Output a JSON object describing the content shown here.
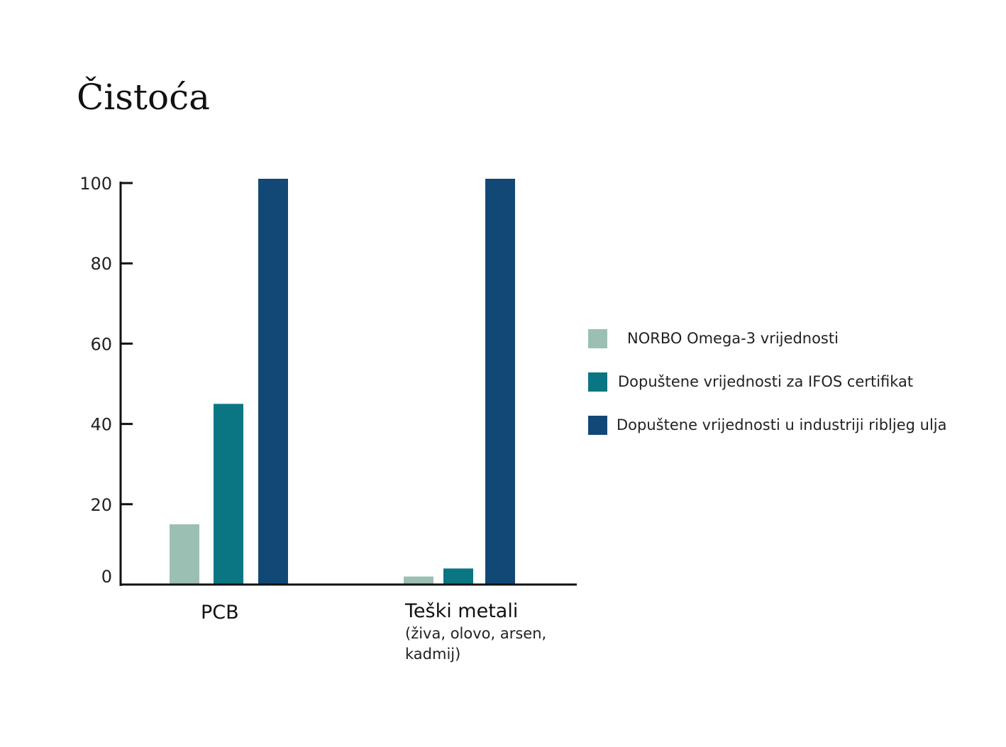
{
  "title": "Čistoća",
  "colors": {
    "norbo": "#9bc0b3",
    "ifos": "#0b7683",
    "industry": "#124876",
    "axis": "#111111"
  },
  "chart_data": {
    "type": "bar",
    "categories": [
      "PCB",
      "Teški metali"
    ],
    "category_sublabels": [
      "",
      "(živa, olovo, arsen, kadmij)"
    ],
    "series": [
      {
        "name": "NORBO Omega-3 vrijednosti",
        "values": [
          15,
          2
        ]
      },
      {
        "name": "Dopuštene vrijednosti za IFOS certifikat",
        "values": [
          45,
          4
        ]
      },
      {
        "name": "Dopuštene vrijednosti u industriji ribljeg ulja",
        "values": [
          102,
          102
        ]
      }
    ],
    "yticks": [
      0,
      20,
      40,
      60,
      80,
      100
    ],
    "ylim": [
      0,
      100
    ],
    "grid": false,
    "legend_position": "right"
  }
}
